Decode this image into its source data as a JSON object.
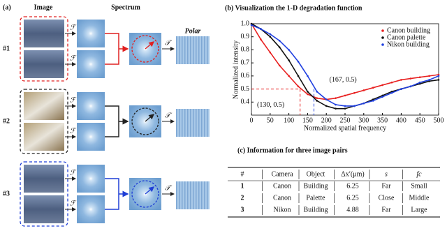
{
  "panel_a": {
    "label": "(a)",
    "headers": {
      "image": "Image",
      "spectrum": "Spectrum",
      "polar": "Polar"
    },
    "operators": {
      "fourier": "ℱ",
      "polar": "𝒯"
    },
    "rows": [
      {
        "label": "#1",
        "color": "#e02020"
      },
      {
        "label": "#2",
        "color": "#222222"
      },
      {
        "label": "#3",
        "color": "#1f3fd6"
      }
    ]
  },
  "chart_data": {
    "type": "line",
    "title": "(b) Visualization the 1-D degradation function",
    "x_label": "Normalized spatial frequency",
    "y_label": "Normalized intensity",
    "x": [
      0,
      25,
      50,
      75,
      100,
      125,
      150,
      175,
      200,
      225,
      250,
      275,
      300,
      325,
      350,
      375,
      400,
      425,
      450,
      475,
      500
    ],
    "series": [
      {
        "name": "Canon building",
        "color": "#e82020",
        "values": [
          1.0,
          0.88,
          0.78,
          0.68,
          0.6,
          0.52,
          0.46,
          0.43,
          0.42,
          0.43,
          0.45,
          0.47,
          0.49,
          0.51,
          0.53,
          0.55,
          0.57,
          0.58,
          0.59,
          0.6,
          0.61
        ]
      },
      {
        "name": "Canon palette",
        "color": "#111111",
        "values": [
          1.0,
          0.96,
          0.9,
          0.82,
          0.72,
          0.6,
          0.48,
          0.41,
          0.37,
          0.35,
          0.35,
          0.37,
          0.39,
          0.42,
          0.45,
          0.48,
          0.5,
          0.52,
          0.54,
          0.56,
          0.57
        ]
      },
      {
        "name": "Nikon building",
        "color": "#2040e0",
        "values": [
          0.99,
          0.96,
          0.92,
          0.87,
          0.8,
          0.71,
          0.6,
          0.48,
          0.42,
          0.38,
          0.37,
          0.37,
          0.39,
          0.41,
          0.44,
          0.47,
          0.5,
          0.52,
          0.55,
          0.57,
          0.6
        ]
      }
    ],
    "xlim": [
      0,
      500
    ],
    "xticks": [
      0,
      50,
      100,
      150,
      200,
      250,
      300,
      350,
      400,
      450,
      500
    ],
    "ylim": [
      0.3,
      1.0
    ],
    "yticks": [
      0.4,
      0.5,
      0.6,
      0.7,
      0.8,
      0.9,
      {
        "value": 1,
        "label": "1.0"
      }
    ],
    "legend": "top-right",
    "annotations": [
      {
        "text": "(130, 0.5)",
        "x": 130,
        "y": 0.5,
        "color": "#e82020"
      },
      {
        "text": "(167, 0.5)",
        "x": 167,
        "y": 0.5,
        "color": "#2040e0"
      }
    ]
  },
  "table": {
    "title": "(c) Information for three image pairs",
    "header": [
      "#",
      "Camera",
      "Object",
      "Δx′(μm)",
      "s",
      "fc"
    ],
    "rows": [
      [
        1,
        "Canon",
        "Building",
        6.25,
        "Far",
        "Small"
      ],
      [
        2,
        "Canon",
        "Palette",
        6.25,
        "Close",
        "Middle"
      ],
      [
        3,
        "Nikon",
        "Building",
        4.88,
        "Far",
        "Large"
      ]
    ]
  }
}
